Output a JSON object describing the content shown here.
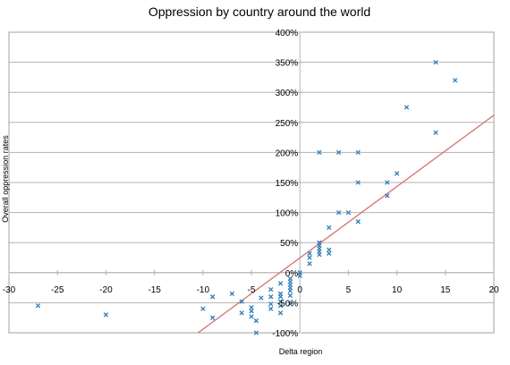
{
  "chart_data": {
    "type": "scatter",
    "title": "Oppression by country around the world",
    "xlabel": "Delta region",
    "ylabel": "Overall oppression rates",
    "xlim": [
      -30,
      20
    ],
    "ylim": [
      -1.0,
      4.0
    ],
    "x_ticks": [
      -30,
      -25,
      -20,
      -15,
      -10,
      -5,
      0,
      5,
      10,
      15,
      20
    ],
    "x_tick_labels": [
      "-30",
      "-25",
      "-20",
      "-15",
      "-10",
      "-5",
      "0",
      "5",
      "10",
      "15",
      "20"
    ],
    "y_ticks": [
      -1.0,
      -0.5,
      0,
      0.5,
      1.0,
      1.5,
      2.0,
      2.5,
      3.0,
      3.5,
      4.0
    ],
    "y_tick_labels": [
      "-100%",
      "-50%",
      "0%",
      "50%",
      "100%",
      "150%",
      "200%",
      "250%",
      "300%",
      "350%",
      "400%"
    ],
    "grid": "horizontal",
    "legend": "none",
    "series": [
      {
        "marker": "x",
        "color": "#2a7fc4",
        "points": [
          [
            -27,
            -0.55
          ],
          [
            -20,
            -0.7
          ],
          [
            -10,
            -0.6
          ],
          [
            -9,
            -0.4
          ],
          [
            -9,
            -0.75
          ],
          [
            -7,
            -0.35
          ],
          [
            -6,
            -0.48
          ],
          [
            -6,
            -0.67
          ],
          [
            -5,
            -0.58
          ],
          [
            -5,
            -0.64
          ],
          [
            -5,
            -0.73
          ],
          [
            -4.5,
            -1.0
          ],
          [
            -4.5,
            -0.8
          ],
          [
            -4,
            -0.42
          ],
          [
            -3,
            -0.28
          ],
          [
            -3,
            -0.4
          ],
          [
            -3,
            -0.52
          ],
          [
            -3,
            -0.6
          ],
          [
            -2,
            -0.18
          ],
          [
            -2,
            -0.35
          ],
          [
            -2,
            -0.4
          ],
          [
            -2,
            -0.48
          ],
          [
            -2,
            -0.55
          ],
          [
            -2,
            -0.67
          ],
          [
            -1,
            -0.1
          ],
          [
            -1,
            -0.15
          ],
          [
            -1,
            -0.2
          ],
          [
            -1,
            -0.25
          ],
          [
            -1,
            -0.3
          ],
          [
            -1,
            -0.38
          ],
          [
            -1,
            -0.52
          ],
          [
            0,
            -0.05
          ],
          [
            0,
            0.0
          ],
          [
            1,
            0.15
          ],
          [
            1,
            0.25
          ],
          [
            1,
            0.32
          ],
          [
            2,
            0.3
          ],
          [
            2,
            0.35
          ],
          [
            2,
            0.4
          ],
          [
            2,
            0.45
          ],
          [
            2,
            0.5
          ],
          [
            2,
            2.0
          ],
          [
            3,
            0.32
          ],
          [
            3,
            0.38
          ],
          [
            3,
            0.75
          ],
          [
            4,
            1.0
          ],
          [
            4,
            2.0
          ],
          [
            5,
            1.0
          ],
          [
            6,
            0.85
          ],
          [
            6,
            1.5
          ],
          [
            6,
            2.0
          ],
          [
            9,
            1.28
          ],
          [
            9,
            1.5
          ],
          [
            10,
            1.65
          ],
          [
            11,
            2.75
          ],
          [
            14,
            2.33
          ],
          [
            14,
            3.5
          ],
          [
            16,
            3.2
          ]
        ]
      }
    ],
    "trendline": {
      "color": "#e06666",
      "points": [
        [
          -10.5,
          -1.0
        ],
        [
          20,
          2.62
        ]
      ]
    }
  }
}
